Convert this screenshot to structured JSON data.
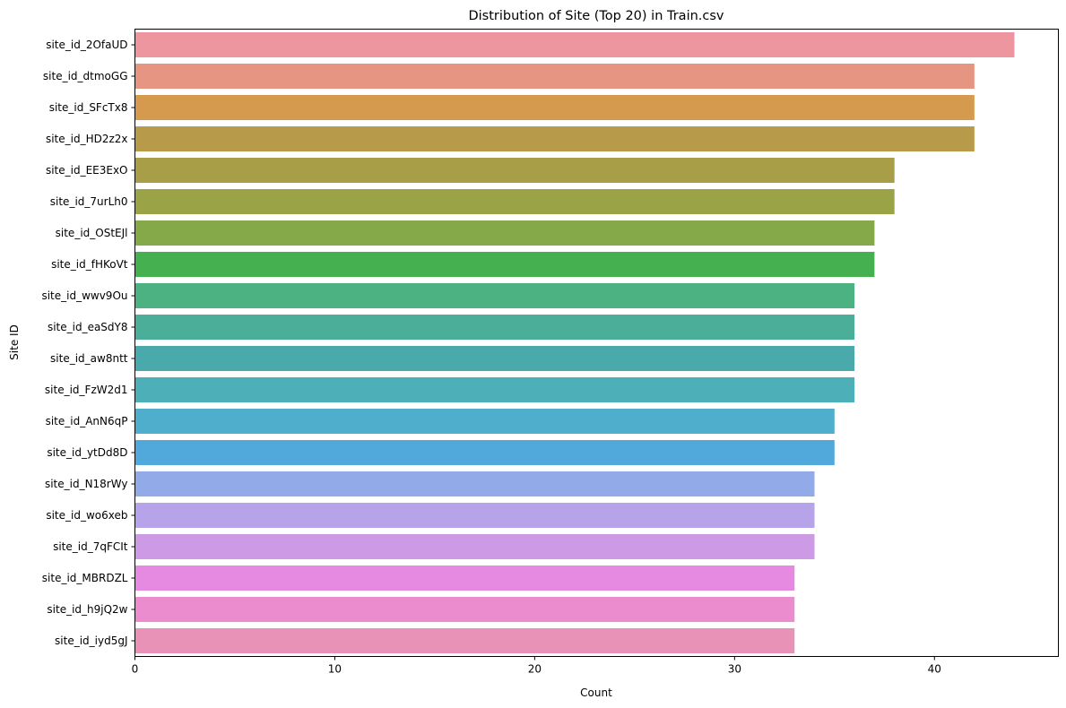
{
  "chart_data": {
    "type": "bar",
    "orientation": "horizontal",
    "title": "Distribution of Site (Top 20) in Train.csv",
    "xlabel": "Count",
    "ylabel": "Site ID",
    "xlim": [
      0,
      46.2
    ],
    "xticks": [
      0,
      10,
      20,
      30,
      40
    ],
    "grid": false,
    "categories": [
      "site_id_2OfaUD",
      "site_id_dtmoGG",
      "site_id_SFcTx8",
      "site_id_HD2z2x",
      "site_id_EE3ExO",
      "site_id_7urLh0",
      "site_id_OStEJl",
      "site_id_fHKoVt",
      "site_id_wwv9Ou",
      "site_id_eaSdY8",
      "site_id_aw8ntt",
      "site_id_FzW2d1",
      "site_id_AnN6qP",
      "site_id_ytDd8D",
      "site_id_N18rWy",
      "site_id_wo6xeb",
      "site_id_7qFCIt",
      "site_id_MBRDZL",
      "site_id_h9jQ2w",
      "site_id_iyd5gJ"
    ],
    "values": [
      44,
      42,
      42,
      42,
      38,
      38,
      37,
      37,
      36,
      36,
      36,
      36,
      35,
      35,
      34,
      34,
      34,
      33,
      33,
      33
    ],
    "colors": [
      "#ed96a0",
      "#e79583",
      "#d69a4e",
      "#b89b4a",
      "#a89e47",
      "#9ba347",
      "#85a848",
      "#45b04f",
      "#4cb282",
      "#4aae98",
      "#4aaaab",
      "#4db0b8",
      "#4eaecc",
      "#51a9db",
      "#93aae9",
      "#b6a3ea",
      "#cd9ae6",
      "#e68ae1",
      "#ea8ccd",
      "#e992b7"
    ]
  }
}
